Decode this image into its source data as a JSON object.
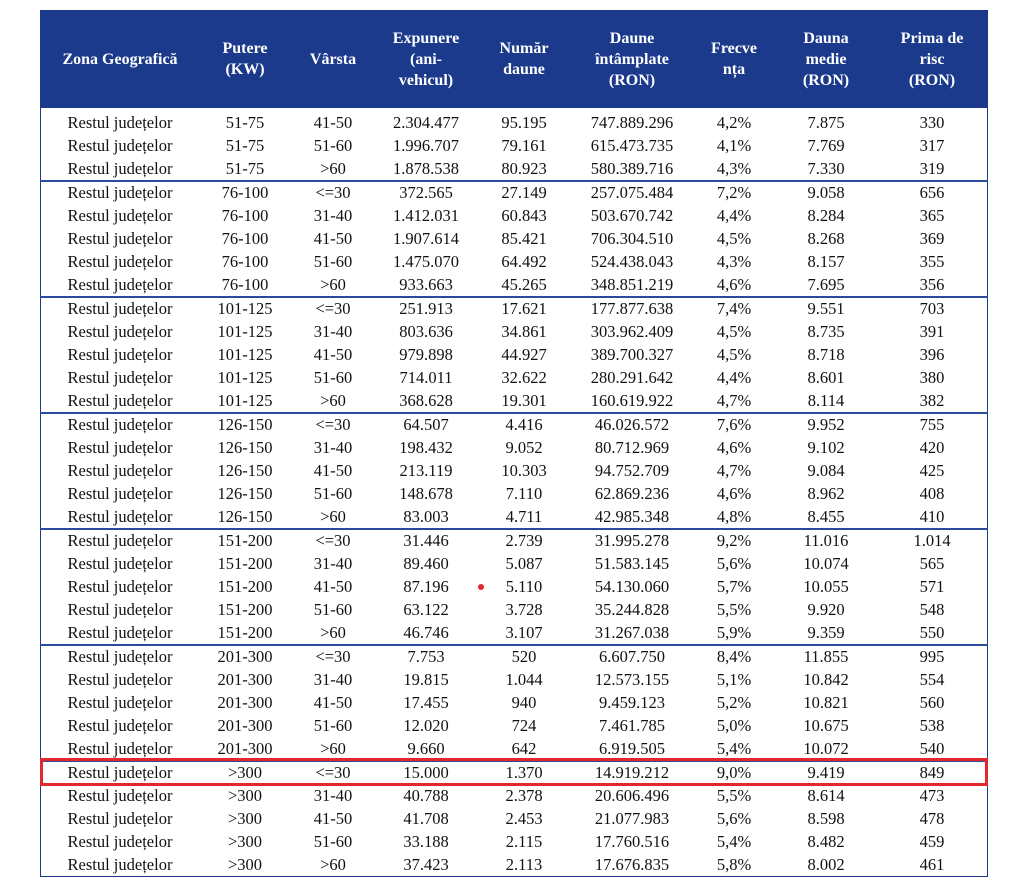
{
  "table": {
    "headers": [
      "Zona Geografică",
      "Putere\n(KW)",
      "Vârsta",
      "Expunere\n(ani-\nvehicul)",
      "Număr\ndaune",
      "Daune\nîntâmplate\n(RON)",
      "Frecve\nnța",
      "Dauna\nmedie\n(RON)",
      "Prima de\nrisc\n(RON)"
    ],
    "rows": [
      [
        "Restul județelor",
        "51-75",
        "41-50",
        "2.304.477",
        "95.195",
        "747.889.296",
        "4,2%",
        "7.875",
        "330"
      ],
      [
        "Restul județelor",
        "51-75",
        "51-60",
        "1.996.707",
        "79.161",
        "615.473.735",
        "4,1%",
        "7.769",
        "317"
      ],
      [
        "Restul județelor",
        "51-75",
        ">60",
        "1.878.538",
        "80.923",
        "580.389.716",
        "4,3%",
        "7.330",
        "319"
      ],
      [
        "Restul județelor",
        "76-100",
        "<=30",
        "372.565",
        "27.149",
        "257.075.484",
        "7,2%",
        "9.058",
        "656"
      ],
      [
        "Restul județelor",
        "76-100",
        "31-40",
        "1.412.031",
        "60.843",
        "503.670.742",
        "4,4%",
        "8.284",
        "365"
      ],
      [
        "Restul județelor",
        "76-100",
        "41-50",
        "1.907.614",
        "85.421",
        "706.304.510",
        "4,5%",
        "8.268",
        "369"
      ],
      [
        "Restul județelor",
        "76-100",
        "51-60",
        "1.475.070",
        "64.492",
        "524.438.043",
        "4,3%",
        "8.157",
        "355"
      ],
      [
        "Restul județelor",
        "76-100",
        ">60",
        "933.663",
        "45.265",
        "348.851.219",
        "4,6%",
        "7.695",
        "356"
      ],
      [
        "Restul județelor",
        "101-125",
        "<=30",
        "251.913",
        "17.621",
        "177.877.638",
        "7,4%",
        "9.551",
        "703"
      ],
      [
        "Restul județelor",
        "101-125",
        "31-40",
        "803.636",
        "34.861",
        "303.962.409",
        "4,5%",
        "8.735",
        "391"
      ],
      [
        "Restul județelor",
        "101-125",
        "41-50",
        "979.898",
        "44.927",
        "389.700.327",
        "4,5%",
        "8.718",
        "396"
      ],
      [
        "Restul județelor",
        "101-125",
        "51-60",
        "714.011",
        "32.622",
        "280.291.642",
        "4,4%",
        "8.601",
        "380"
      ],
      [
        "Restul județelor",
        "101-125",
        ">60",
        "368.628",
        "19.301",
        "160.619.922",
        "4,7%",
        "8.114",
        "382"
      ],
      [
        "Restul județelor",
        "126-150",
        "<=30",
        "64.507",
        "4.416",
        "46.026.572",
        "7,6%",
        "9.952",
        "755"
      ],
      [
        "Restul județelor",
        "126-150",
        "31-40",
        "198.432",
        "9.052",
        "80.712.969",
        "4,6%",
        "9.102",
        "420"
      ],
      [
        "Restul județelor",
        "126-150",
        "41-50",
        "213.119",
        "10.303",
        "94.752.709",
        "4,7%",
        "9.084",
        "425"
      ],
      [
        "Restul județelor",
        "126-150",
        "51-60",
        "148.678",
        "7.110",
        "62.869.236",
        "4,6%",
        "8.962",
        "408"
      ],
      [
        "Restul județelor",
        "126-150",
        ">60",
        "83.003",
        "4.711",
        "42.985.348",
        "4,8%",
        "8.455",
        "410"
      ],
      [
        "Restul județelor",
        "151-200",
        "<=30",
        "31.446",
        "2.739",
        "31.995.278",
        "9,2%",
        "11.016",
        "1.014"
      ],
      [
        "Restul județelor",
        "151-200",
        "31-40",
        "89.460",
        "5.087",
        "51.583.145",
        "5,6%",
        "10.074",
        "565"
      ],
      [
        "Restul județelor",
        "151-200",
        "41-50",
        "87.196",
        "5.110",
        "54.130.060",
        "5,7%",
        "10.055",
        "571"
      ],
      [
        "Restul județelor",
        "151-200",
        "51-60",
        "63.122",
        "3.728",
        "35.244.828",
        "5,5%",
        "9.920",
        "548"
      ],
      [
        "Restul județelor",
        "151-200",
        ">60",
        "46.746",
        "3.107",
        "31.267.038",
        "5,9%",
        "9.359",
        "550"
      ],
      [
        "Restul județelor",
        "201-300",
        "<=30",
        "7.753",
        "520",
        "6.607.750",
        "8,4%",
        "11.855",
        "995"
      ],
      [
        "Restul județelor",
        "201-300",
        "31-40",
        "19.815",
        "1.044",
        "12.573.155",
        "5,1%",
        "10.842",
        "554"
      ],
      [
        "Restul județelor",
        "201-300",
        "41-50",
        "17.455",
        "940",
        "9.459.123",
        "5,2%",
        "10.821",
        "560"
      ],
      [
        "Restul județelor",
        "201-300",
        "51-60",
        "12.020",
        "724",
        "7.461.785",
        "5,0%",
        "10.675",
        "538"
      ],
      [
        "Restul județelor",
        "201-300",
        ">60",
        "9.660",
        "642",
        "6.919.505",
        "5,4%",
        "10.072",
        "540"
      ],
      [
        "Restul județelor",
        ">300",
        "<=30",
        "15.000",
        "1.370",
        "14.919.212",
        "9,0%",
        "9.419",
        "849"
      ],
      [
        "Restul județelor",
        ">300",
        "31-40",
        "40.788",
        "2.378",
        "20.606.496",
        "5,5%",
        "8.614",
        "473"
      ],
      [
        "Restul județelor",
        ">300",
        "41-50",
        "41.708",
        "2.453",
        "21.077.983",
        "5,6%",
        "8.598",
        "478"
      ],
      [
        "Restul județelor",
        ">300",
        "51-60",
        "33.188",
        "2.115",
        "17.760.516",
        "5,4%",
        "8.482",
        "459"
      ],
      [
        "Restul județelor",
        ">300",
        ">60",
        "37.423",
        "2.113",
        "17.676.835",
        "5,8%",
        "8.002",
        "461"
      ]
    ]
  }
}
